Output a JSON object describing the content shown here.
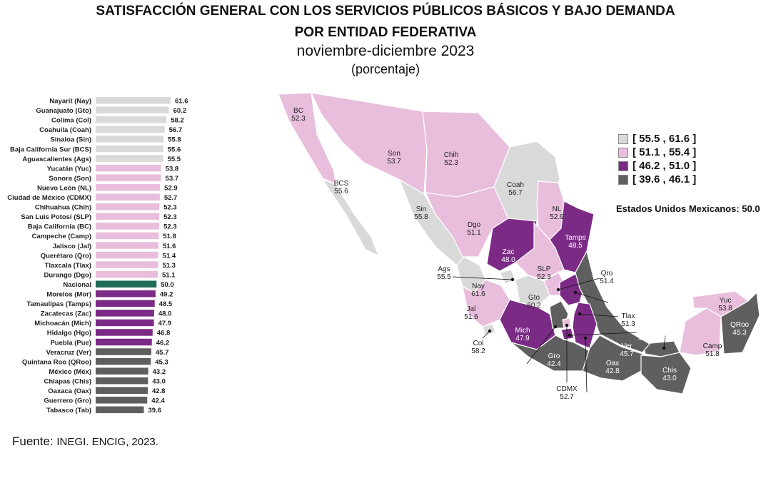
{
  "title_line1": "SATISFACCIÓN GENERAL CON LOS SERVICIOS PÚBLICOS BÁSICOS Y BAJO DEMANDA",
  "title_line2": "POR ENTIDAD FEDERATIVA",
  "subtitle": "noviembre-diciembre 2023",
  "unit": "(porcentaje)",
  "source_label": "Fuente:",
  "source_text": "INEGI. ENCIG, 2023.",
  "colors": {
    "class1": "#d9d9d9",
    "class2": "#e8bedc",
    "class3": "#7b2a86",
    "class4": "#5f5f5f",
    "national": "#1f6b57"
  },
  "legend": [
    {
      "label": "[ 55.5 , 61.6 ]",
      "color": "#d9d9d9"
    },
    {
      "label": "[ 51.1 , 55.4 ]",
      "color": "#e8bedc"
    },
    {
      "label": "[ 46.2 , 51.0 ]",
      "color": "#7b2a86"
    },
    {
      "label": "[ 39.6 , 46.1 ]",
      "color": "#5f5f5f"
    }
  ],
  "national_label": "Estados Unidos Mexicanos:  50.0",
  "chart_data": {
    "type": "bar",
    "orientation": "horizontal",
    "xlim": [
      0,
      61.6
    ],
    "categories": [
      "Nayarit (Nay)",
      "Guanajuato (Gto)",
      "Colima (Col)",
      "Coahuila (Coah)",
      "Sinaloa (Sin)",
      "Baja California Sur (BCS)",
      "Aguascalientes (Ags)",
      "Yucatán (Yuc)",
      "Sonora (Son)",
      "Nuevo León (NL)",
      "Ciudad de México (CDMX)",
      "Chihuahua (Chih)",
      "San Luis Potosí (SLP)",
      "Baja California (BC)",
      "Campeche (Camp)",
      "Jalisco (Jal)",
      "Querétaro (Qro)",
      "Tlaxcala (Tlax)",
      "Durango (Dgo)",
      "Nacional",
      "Morelos (Mor)",
      "Tamaulipas (Tamps)",
      "Zacatecas (Zac)",
      "Michoacán (Mich)",
      "Hidalgo (Hgo)",
      "Puebla (Pue)",
      "Veracruz (Ver)",
      "Quintana Roo (QRoo)",
      "México (Méx)",
      "Chiapas (Chis)",
      "Oaxaca (Oax)",
      "Guerrero (Gro)",
      "Tabasco (Tab)"
    ],
    "values": [
      61.6,
      60.2,
      58.2,
      56.7,
      55.8,
      55.6,
      55.5,
      53.8,
      53.7,
      52.9,
      52.7,
      52.3,
      52.3,
      52.3,
      51.8,
      51.6,
      51.4,
      51.3,
      51.1,
      50.0,
      49.2,
      48.5,
      48.0,
      47.9,
      46.8,
      46.2,
      45.7,
      45.3,
      43.2,
      43.0,
      42.8,
      42.4,
      39.6
    ],
    "value_labels": [
      "61.6",
      "60.2",
      "58.2",
      "56.7",
      "55.8",
      "55.6",
      "55.5",
      "53.8",
      "53.7",
      "52.9",
      "52.7",
      "52.3",
      "52.3",
      "52.3",
      "51.8",
      "51.6",
      "51.4",
      "51.3",
      "51.1",
      "50.0",
      "49.2",
      "48.5",
      "48.0",
      "47.9",
      "46.8",
      "46.2",
      "45.7",
      "45.3",
      "43.2",
      "43.0",
      "42.8",
      "42.4",
      "39.6"
    ]
  },
  "map": {
    "states": [
      {
        "abbr": "BC",
        "value": "52.3",
        "cls": 2
      },
      {
        "abbr": "Son",
        "value": "53.7",
        "cls": 2
      },
      {
        "abbr": "Chih",
        "value": "52.3",
        "cls": 2
      },
      {
        "abbr": "BCS",
        "value": "55.6",
        "cls": 1
      },
      {
        "abbr": "Coah",
        "value": "56.7",
        "cls": 1
      },
      {
        "abbr": "NL",
        "value": "52.9",
        "cls": 2
      },
      {
        "abbr": "Sin",
        "value": "55.8",
        "cls": 1
      },
      {
        "abbr": "Dgo",
        "value": "51.1",
        "cls": 2
      },
      {
        "abbr": "Zac",
        "value": "48.0",
        "cls": 3
      },
      {
        "abbr": "Tamps",
        "value": "48.5",
        "cls": 3
      },
      {
        "abbr": "Ags",
        "value": "55.5",
        "cls": 1
      },
      {
        "abbr": "SLP",
        "value": "52.3",
        "cls": 2
      },
      {
        "abbr": "Qro",
        "value": "51.4",
        "cls": 2
      },
      {
        "abbr": "Nay",
        "value": "61.6",
        "cls": 1
      },
      {
        "abbr": "Gto",
        "value": "60.2",
        "cls": 1
      },
      {
        "abbr": "Hgo",
        "value": "46.8",
        "cls": 3
      },
      {
        "abbr": "Jal",
        "value": "51.6",
        "cls": 2
      },
      {
        "abbr": "Tlax",
        "value": "51.3",
        "cls": 2
      },
      {
        "abbr": "Yuc",
        "value": "53.8",
        "cls": 2
      },
      {
        "abbr": "Mor",
        "value": "49.2",
        "cls": 3
      },
      {
        "abbr": "Tab",
        "value": "39.6",
        "cls": 4
      },
      {
        "abbr": "Mich",
        "value": "47.9",
        "cls": 3
      },
      {
        "abbr": "Camp",
        "value": "51.8",
        "cls": 2
      },
      {
        "abbr": "QRoo",
        "value": "45.3",
        "cls": 4
      },
      {
        "abbr": "Col",
        "value": "58.2",
        "cls": 1
      },
      {
        "abbr": "Ver",
        "value": "45.7",
        "cls": 4
      },
      {
        "abbr": "Gro",
        "value": "42.4",
        "cls": 4
      },
      {
        "abbr": "Oax",
        "value": "42.8",
        "cls": 4
      },
      {
        "abbr": "Chis",
        "value": "43.0",
        "cls": 4
      },
      {
        "abbr": "Méx",
        "value": "43.2",
        "cls": 4
      },
      {
        "abbr": "CDMX",
        "value": "52.7",
        "cls": 2
      },
      {
        "abbr": "Pue",
        "value": "46.2",
        "cls": 3
      }
    ]
  }
}
